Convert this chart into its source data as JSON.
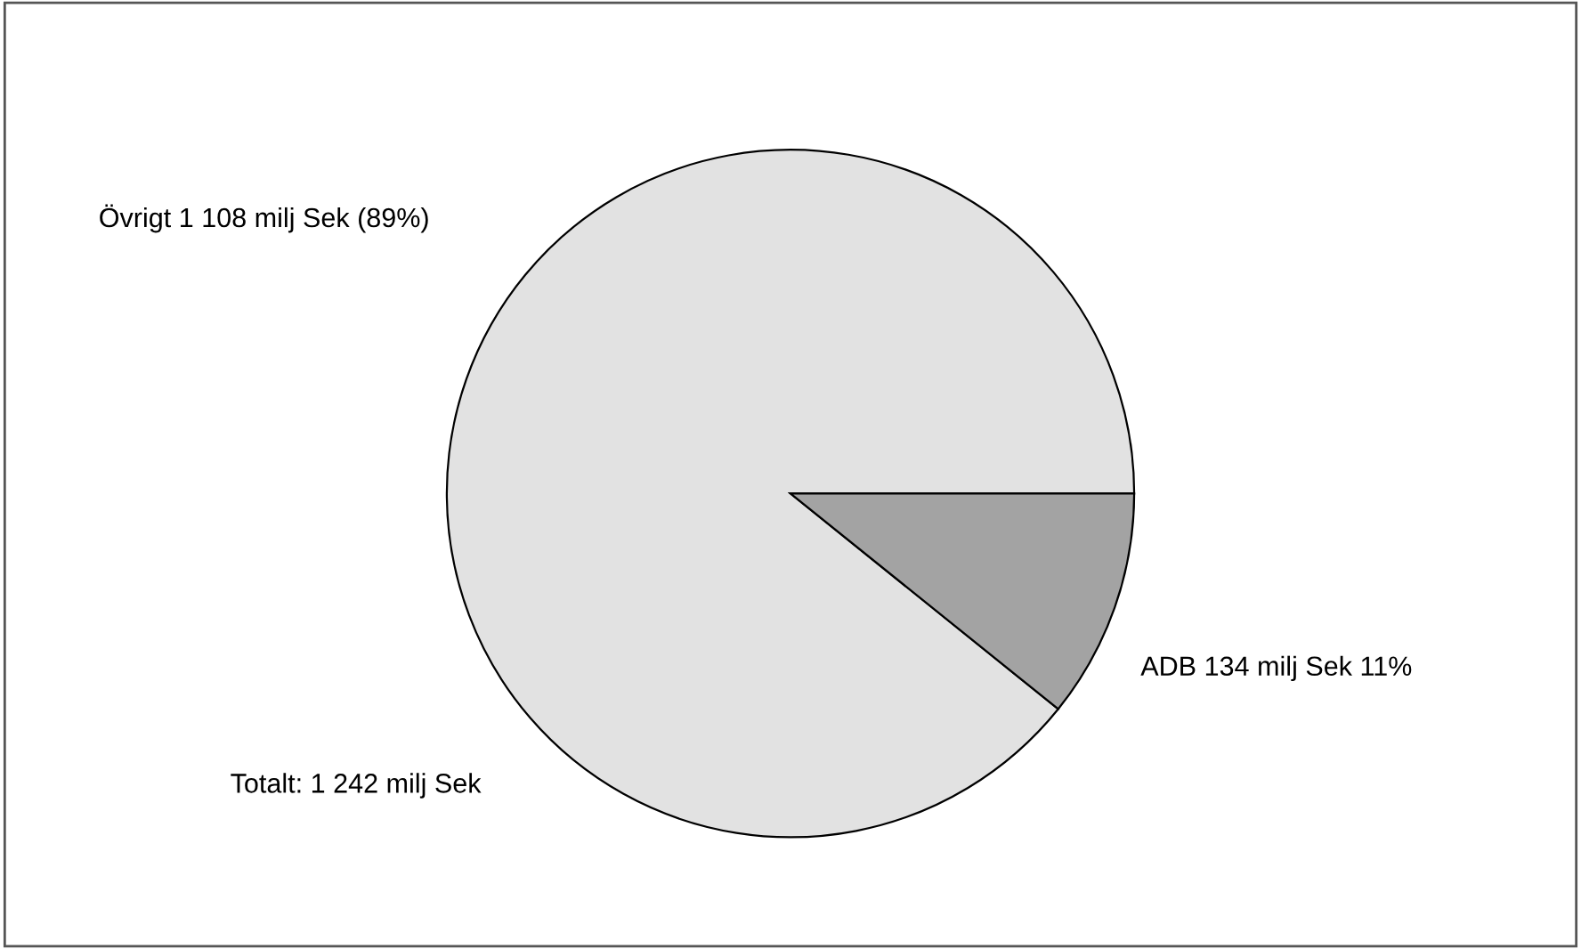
{
  "chart_data": {
    "type": "pie",
    "categories": [
      "Övrigt 1 108 milj Sek (89%)",
      "ADB 134 milj Sek 11%"
    ],
    "values": [
      1108,
      134
    ],
    "colors": [
      "#e2e2e2",
      "#a3a3a3"
    ],
    "annotations": [
      "Totalt: 1 242 milj Sek"
    ]
  }
}
